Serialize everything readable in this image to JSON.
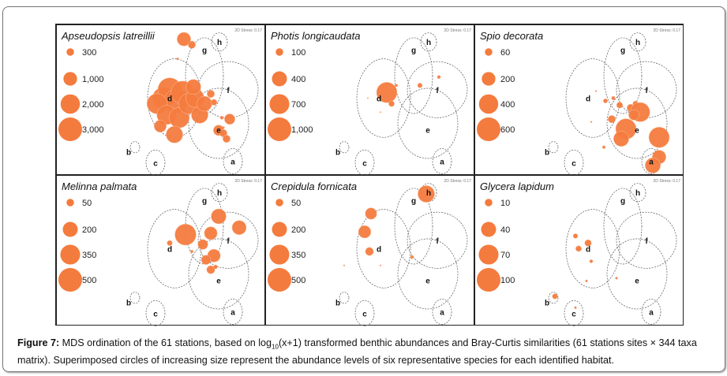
{
  "chart_data": {
    "type": "scatter",
    "title": "MDS ordination of the 61 stations (bubble plots)",
    "xlabel": "",
    "ylabel": "",
    "stress_label": "2D Stress: 0.17",
    "habitat_groups": [
      "a",
      "b",
      "c",
      "d",
      "e",
      "f",
      "g",
      "h"
    ],
    "habitat_regions": [
      {
        "label": "h",
        "cx": 0.735,
        "cy": 0.08,
        "rx": 0.05,
        "ry": 0.065
      },
      {
        "label": "g",
        "cx": 0.64,
        "cy": 0.32,
        "rx": 0.12,
        "ry": 0.27
      },
      {
        "label": "f",
        "cx": 0.79,
        "cy": 0.42,
        "rx": 0.19,
        "ry": 0.2
      },
      {
        "label": "d",
        "cx": 0.45,
        "cy": 0.48,
        "rx": 0.17,
        "ry": 0.28
      },
      {
        "label": "e",
        "cx": 0.73,
        "cy": 0.66,
        "rx": 0.19,
        "ry": 0.25
      },
      {
        "label": "b",
        "cx": 0.2,
        "cy": 0.83,
        "rx": 0.03,
        "ry": 0.04
      },
      {
        "label": "c",
        "cx": 0.33,
        "cy": 0.94,
        "rx": 0.06,
        "ry": 0.09
      },
      {
        "label": "a",
        "cx": 0.82,
        "cy": 0.93,
        "rx": 0.06,
        "ry": 0.09
      }
    ],
    "panels": [
      {
        "species": "Apseudopsis latreillii",
        "legend": [
          {
            "label": "300",
            "value": 300
          },
          {
            "label": "1,000",
            "value": 1000
          },
          {
            "label": "2,000",
            "value": 2000
          },
          {
            "label": "3,000",
            "value": 3000
          }
        ],
        "max_value": 3000,
        "points": [
          {
            "x": 0.51,
            "y": 0.06,
            "v": 1000
          },
          {
            "x": 0.56,
            "y": 0.1,
            "v": 300
          },
          {
            "x": 0.47,
            "y": 0.2,
            "v": 30
          },
          {
            "x": 0.38,
            "y": 0.48,
            "v": 2500
          },
          {
            "x": 0.42,
            "y": 0.42,
            "v": 3000
          },
          {
            "x": 0.46,
            "y": 0.5,
            "v": 3000
          },
          {
            "x": 0.5,
            "y": 0.44,
            "v": 2800
          },
          {
            "x": 0.34,
            "y": 0.52,
            "v": 2200
          },
          {
            "x": 0.4,
            "y": 0.6,
            "v": 2000
          },
          {
            "x": 0.48,
            "y": 0.62,
            "v": 2200
          },
          {
            "x": 0.54,
            "y": 0.52,
            "v": 2200
          },
          {
            "x": 0.58,
            "y": 0.48,
            "v": 1800
          },
          {
            "x": 0.57,
            "y": 0.4,
            "v": 1200
          },
          {
            "x": 0.61,
            "y": 0.6,
            "v": 1500
          },
          {
            "x": 0.64,
            "y": 0.52,
            "v": 1200
          },
          {
            "x": 0.45,
            "y": 0.74,
            "v": 1500
          },
          {
            "x": 0.36,
            "y": 0.68,
            "v": 800
          },
          {
            "x": 0.68,
            "y": 0.45,
            "v": 300
          },
          {
            "x": 0.7,
            "y": 0.51,
            "v": 200
          },
          {
            "x": 0.75,
            "y": 0.62,
            "v": 60
          },
          {
            "x": 0.8,
            "y": 0.63,
            "v": 600
          },
          {
            "x": 0.76,
            "y": 0.69,
            "v": 30
          },
          {
            "x": 0.73,
            "y": 0.71,
            "v": 600
          },
          {
            "x": 0.76,
            "y": 0.73,
            "v": 300
          },
          {
            "x": 0.78,
            "y": 0.77,
            "v": 300
          }
        ]
      },
      {
        "species": "Photis longicaudata",
        "legend": [
          {
            "label": "100",
            "value": 100
          },
          {
            "label": "400",
            "value": 400
          },
          {
            "label": "700",
            "value": 700
          },
          {
            "label": "1,000",
            "value": 1000
          }
        ],
        "max_value": 1000,
        "points": [
          {
            "x": 0.47,
            "y": 0.44,
            "v": 750
          },
          {
            "x": 0.5,
            "y": 0.52,
            "v": 60
          },
          {
            "x": 0.53,
            "y": 0.39,
            "v": 15
          },
          {
            "x": 0.68,
            "y": 0.39,
            "v": 40
          },
          {
            "x": 0.8,
            "y": 0.33,
            "v": 20
          },
          {
            "x": 0.35,
            "y": 0.48,
            "v": 3
          },
          {
            "x": 0.43,
            "y": 0.58,
            "v": 3
          }
        ]
      },
      {
        "species": "Spio decorata",
        "legend": [
          {
            "label": "60",
            "value": 60
          },
          {
            "label": "200",
            "value": 200
          },
          {
            "label": "400",
            "value": 400
          },
          {
            "label": "600",
            "value": 600
          }
        ],
        "max_value": 600,
        "points": [
          {
            "x": 0.53,
            "y": 0.5,
            "v": 20
          },
          {
            "x": 0.58,
            "y": 0.48,
            "v": 15
          },
          {
            "x": 0.62,
            "y": 0.53,
            "v": 40
          },
          {
            "x": 0.69,
            "y": 0.55,
            "v": 60
          },
          {
            "x": 0.72,
            "y": 0.52,
            "v": 30
          },
          {
            "x": 0.75,
            "y": 0.58,
            "v": 400
          },
          {
            "x": 0.71,
            "y": 0.6,
            "v": 120
          },
          {
            "x": 0.57,
            "y": 0.63,
            "v": 60
          },
          {
            "x": 0.66,
            "y": 0.7,
            "v": 450
          },
          {
            "x": 0.63,
            "y": 0.77,
            "v": 250
          },
          {
            "x": 0.87,
            "y": 0.76,
            "v": 450
          },
          {
            "x": 0.52,
            "y": 0.83,
            "v": 10
          },
          {
            "x": 0.87,
            "y": 0.9,
            "v": 200
          },
          {
            "x": 0.83,
            "y": 0.96,
            "v": 250
          },
          {
            "x": 0.47,
            "y": 0.43,
            "v": 3
          },
          {
            "x": 0.44,
            "y": 0.65,
            "v": 3
          }
        ]
      },
      {
        "species": "Melinna palmata",
        "legend": [
          {
            "label": "50",
            "value": 50
          },
          {
            "label": "200",
            "value": 200
          },
          {
            "label": "350",
            "value": 350
          },
          {
            "label": "500",
            "value": 500
          }
        ],
        "max_value": 500,
        "points": [
          {
            "x": 0.52,
            "y": 0.38,
            "v": 400
          },
          {
            "x": 0.73,
            "y": 0.25,
            "v": 200
          },
          {
            "x": 0.86,
            "y": 0.33,
            "v": 180
          },
          {
            "x": 0.68,
            "y": 0.37,
            "v": 150
          },
          {
            "x": 0.63,
            "y": 0.45,
            "v": 90
          },
          {
            "x": 0.7,
            "y": 0.53,
            "v": 150
          },
          {
            "x": 0.65,
            "y": 0.56,
            "v": 80
          },
          {
            "x": 0.68,
            "y": 0.63,
            "v": 60
          },
          {
            "x": 0.71,
            "y": 0.61,
            "v": 15
          },
          {
            "x": 0.42,
            "y": 0.44,
            "v": 25
          },
          {
            "x": 0.56,
            "y": 0.5,
            "v": 8
          }
        ]
      },
      {
        "species": "Crepidula fornicata",
        "legend": [
          {
            "label": "50",
            "value": 50
          },
          {
            "label": "200",
            "value": 200
          },
          {
            "label": "350",
            "value": 350
          },
          {
            "label": "500",
            "value": 500
          }
        ],
        "max_value": 500,
        "points": [
          {
            "x": 0.72,
            "y": 0.09,
            "v": 250
          },
          {
            "x": 0.37,
            "y": 0.23,
            "v": 120
          },
          {
            "x": 0.33,
            "y": 0.36,
            "v": 140
          },
          {
            "x": 0.36,
            "y": 0.5,
            "v": 60
          },
          {
            "x": 0.63,
            "y": 0.54,
            "v": 10
          },
          {
            "x": 0.2,
            "y": 0.6,
            "v": 2
          },
          {
            "x": 0.43,
            "y": 0.6,
            "v": 2
          }
        ]
      },
      {
        "species": "Glycera lapidum",
        "legend": [
          {
            "label": "10",
            "value": 10
          },
          {
            "label": "40",
            "value": 40
          },
          {
            "label": "70",
            "value": 70
          },
          {
            "label": "100",
            "value": 100
          }
        ],
        "max_value": 100,
        "points": [
          {
            "x": 0.34,
            "y": 0.39,
            "v": 4
          },
          {
            "x": 0.42,
            "y": 0.44,
            "v": 8
          },
          {
            "x": 0.36,
            "y": 0.48,
            "v": 6
          },
          {
            "x": 0.44,
            "y": 0.57,
            "v": 2
          },
          {
            "x": 0.41,
            "y": 0.71,
            "v": 1
          },
          {
            "x": 0.6,
            "y": 0.69,
            "v": 1
          },
          {
            "x": 0.21,
            "y": 0.82,
            "v": 5
          },
          {
            "x": 0.34,
            "y": 0.9,
            "v": 1
          }
        ]
      }
    ]
  },
  "caption": {
    "figure_label": "Figure 7:",
    "text_1": " MDS ordination of the 61 stations, based on log",
    "subscript": "10",
    "text_2": "(x+1) transformed benthic abundances and Bray-Curtis similarities (61 stations sites × 344 taxa matrix). Superimposed circles of increasing size represent the abundance levels of six representative species for each identified habitat."
  },
  "colors": {
    "bubble": "#F47B3E",
    "bubble_stroke": "#F9C2A2",
    "region": "#555555",
    "frame": "#222222"
  }
}
